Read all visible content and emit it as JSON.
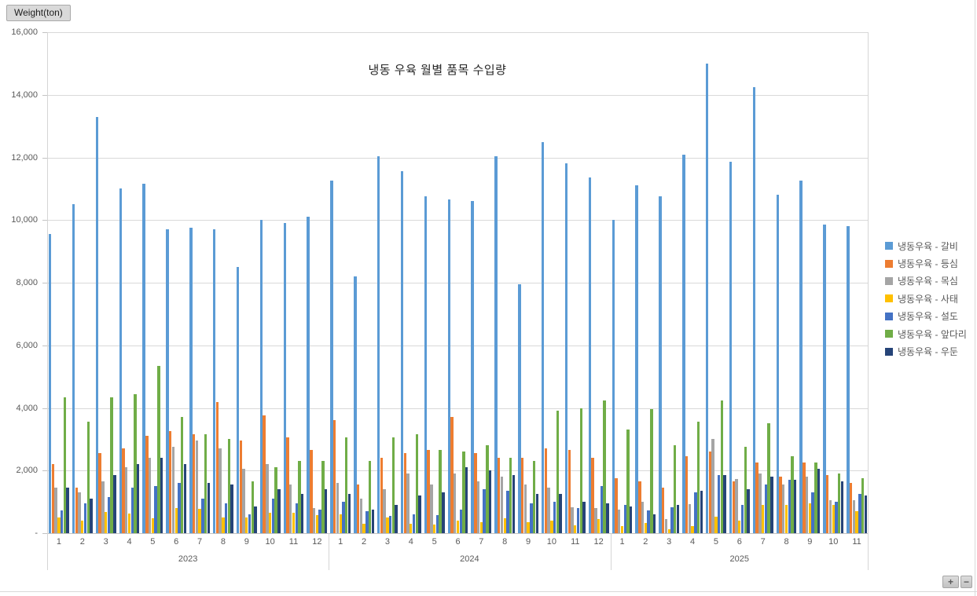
{
  "axis_unit_label": "Weight(ton)",
  "title_text": "냉동 우육 월별 품목 수입량",
  "zoom_controls": {
    "zoom_in": "+",
    "zoom_out": "−"
  },
  "chart_data": {
    "type": "bar",
    "title": "냉동 우육 월별 품목 수입량",
    "ylabel": "Weight(ton)",
    "xlabel": "",
    "ylim": [
      0,
      16000
    ],
    "ytick_step": 2000,
    "ytick_labels_top_to_bottom": [
      "16,000",
      "14,000",
      "12,000",
      "10,000",
      "8,000",
      "6,000",
      "4,000",
      "2,000",
      "-"
    ],
    "grid": true,
    "legend_position": "right",
    "years": [
      {
        "label": "2023",
        "months": [
          "1",
          "2",
          "3",
          "4",
          "5",
          "6",
          "7",
          "8",
          "9",
          "10",
          "11",
          "12"
        ]
      },
      {
        "label": "2024",
        "months": [
          "1",
          "2",
          "3",
          "4",
          "5",
          "6",
          "7",
          "8",
          "9",
          "10",
          "11",
          "12"
        ]
      },
      {
        "label": "2025",
        "months": [
          "1",
          "2",
          "3",
          "4",
          "5",
          "6",
          "7",
          "8",
          "9",
          "10",
          "11"
        ]
      }
    ],
    "series": [
      {
        "name": "냉동우육 - 갈비",
        "color": "#5B9BD5",
        "values": [
          9550,
          10500,
          13300,
          11000,
          11150,
          9700,
          9750,
          9700,
          8500,
          10000,
          9900,
          10100,
          11250,
          8200,
          12050,
          11550,
          10750,
          10650,
          10600,
          12050,
          7950,
          12500,
          11800,
          11350,
          10000,
          11100,
          10750,
          12100,
          15000,
          11850,
          14250,
          10800,
          11250,
          9850,
          9800
        ]
      },
      {
        "name": "냉동우육 - 등심",
        "color": "#ED7D31",
        "values": [
          2200,
          1450,
          2550,
          2700,
          3100,
          3250,
          3150,
          4200,
          2950,
          3750,
          3050,
          2650,
          3600,
          1550,
          2400,
          2550,
          2650,
          3700,
          2550,
          2400,
          2400,
          2700,
          2650,
          2400,
          1750,
          1650,
          1450,
          2450,
          2600,
          1650,
          2250,
          1800,
          2250,
          1850,
          1600
        ]
      },
      {
        "name": "냉동우육 - 목심",
        "color": "#A5A5A5",
        "values": [
          1450,
          1300,
          1650,
          2100,
          2400,
          2750,
          2950,
          2700,
          2050,
          2200,
          1550,
          800,
          1600,
          1100,
          1400,
          1900,
          1550,
          1900,
          1650,
          1800,
          1550,
          1450,
          830,
          800,
          750,
          1000,
          460,
          930,
          3000,
          1730,
          1900,
          1550,
          1800,
          1050,
          1050
        ]
      },
      {
        "name": "냉동우육 - 사태",
        "color": "#FFC000",
        "values": [
          500,
          400,
          680,
          620,
          470,
          800,
          770,
          500,
          500,
          650,
          650,
          570,
          600,
          300,
          500,
          300,
          280,
          400,
          350,
          480,
          340,
          400,
          260,
          460,
          220,
          320,
          120,
          230,
          530,
          400,
          900,
          900,
          950,
          900,
          700
        ]
      },
      {
        "name": "냉동우육 - 설도",
        "color": "#4472C4",
        "values": [
          730,
          950,
          1150,
          1450,
          1500,
          1600,
          1100,
          950,
          600,
          1100,
          950,
          750,
          1000,
          700,
          550,
          600,
          570,
          750,
          1400,
          1350,
          950,
          1000,
          800,
          1500,
          900,
          730,
          830,
          1300,
          1850,
          900,
          1550,
          1700,
          1300,
          1000,
          1250
        ]
      },
      {
        "name": "냉동우육 - 앞다리",
        "color": "#70AD47",
        "values": [
          4350,
          3550,
          4350,
          4450,
          5350,
          3700,
          3150,
          3000,
          1650,
          2100,
          2300,
          2300,
          3050,
          2300,
          3050,
          3150,
          2650,
          2600,
          2800,
          2400,
          2300,
          3900,
          4000,
          4250,
          3300,
          3950,
          2800,
          3550,
          4250,
          2750,
          3500,
          2450,
          2250,
          1900,
          1750
        ]
      },
      {
        "name": "냉동우육 - 우둔",
        "color": "#264478",
        "values": [
          1450,
          1100,
          1850,
          2200,
          2400,
          2200,
          1600,
          1550,
          850,
          1400,
          1250,
          1400,
          1250,
          750,
          900,
          1200,
          1300,
          2100,
          2000,
          1850,
          1250,
          1250,
          1000,
          950,
          850,
          600,
          900,
          1350,
          1850,
          1400,
          1800,
          1700,
          2050,
          1650,
          1200
        ]
      }
    ]
  }
}
